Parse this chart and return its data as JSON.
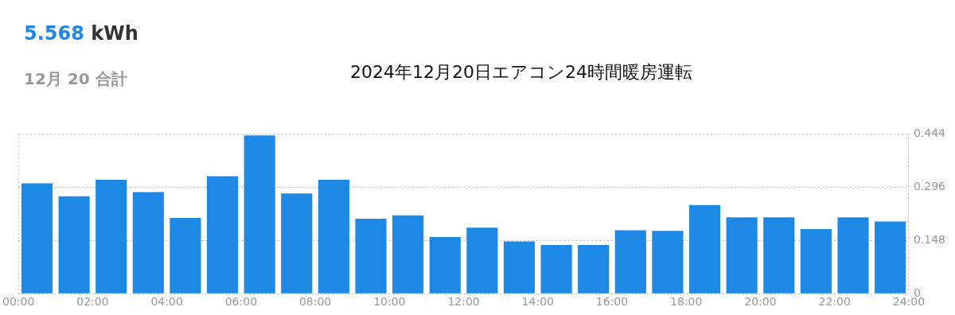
{
  "chart_data": {
    "type": "bar",
    "title": "2024年12月20日エアコン24時間暖房運転",
    "annotations": [
      "5.568 kWh",
      "12月 20 合計"
    ],
    "x": [
      0.5,
      1.5,
      2.5,
      3.5,
      4.5,
      5.5,
      6.5,
      7.5,
      8.5,
      9.5,
      10.5,
      11.5,
      12.5,
      13.5,
      14.5,
      15.5,
      16.5,
      17.5,
      18.5,
      19.5,
      20.5,
      21.5,
      22.5,
      23.5
    ],
    "values": [
      0.306,
      0.27,
      0.316,
      0.282,
      0.21,
      0.326,
      0.439,
      0.278,
      0.316,
      0.208,
      0.217,
      0.157,
      0.183,
      0.145,
      0.135,
      0.135,
      0.176,
      0.174,
      0.246,
      0.212,
      0.212,
      0.179,
      0.212,
      0.2
    ],
    "color": "#1e88e5",
    "xlim": [
      0,
      24
    ],
    "xticks": [
      {
        "value": 0,
        "label": "00:00"
      },
      {
        "value": 2,
        "label": "02:00"
      },
      {
        "value": 4,
        "label": "04:00"
      },
      {
        "value": 6,
        "label": "06:00"
      },
      {
        "value": 8,
        "label": "08:00"
      },
      {
        "value": 10,
        "label": "10:00"
      },
      {
        "value": 12,
        "label": "12:00"
      },
      {
        "value": 14,
        "label": "14:00"
      },
      {
        "value": 16,
        "label": "16:00"
      },
      {
        "value": 18,
        "label": "18:00"
      },
      {
        "value": 20,
        "label": "20:00"
      },
      {
        "value": 22,
        "label": "22:00"
      },
      {
        "value": 24,
        "label": "24:00"
      }
    ],
    "ylim": [
      0,
      0.444
    ],
    "yticks": [
      0,
      0.148,
      0.296,
      0.444
    ],
    "grid": "y",
    "line_style": "dotted"
  }
}
